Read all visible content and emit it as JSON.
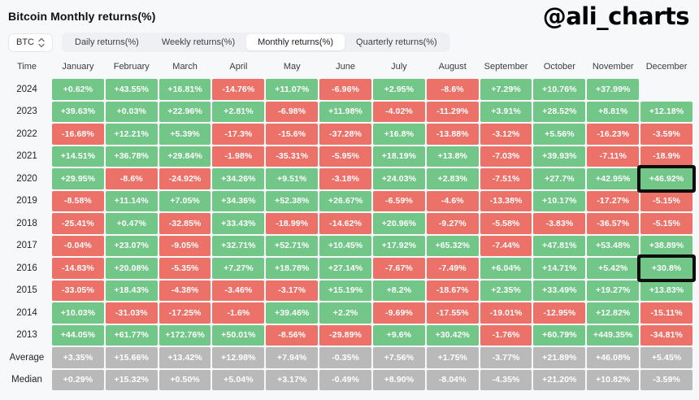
{
  "header": {
    "title": "Bitcoin Monthly returns(%)",
    "handle": "@ali_charts"
  },
  "controls": {
    "asset_selector": {
      "value": "BTC",
      "icon": "updown-chevron-icon"
    },
    "tabs": [
      {
        "label": "Daily returns(%)",
        "active": false
      },
      {
        "label": "Weekly returns(%)",
        "active": false
      },
      {
        "label": "Monthly returns(%)",
        "active": true
      },
      {
        "label": "Quarterly returns(%)",
        "active": false
      }
    ]
  },
  "colors": {
    "positive": "#72c688",
    "negative": "#ec7168",
    "summary": "#b9b9ba",
    "highlight_border": "#0d0d0d",
    "background": "#f7f8f9"
  },
  "table": {
    "time_header": "Time",
    "columns": [
      "January",
      "February",
      "March",
      "April",
      "May",
      "June",
      "July",
      "August",
      "September",
      "October",
      "November",
      "December"
    ],
    "rows": [
      {
        "label": "2024",
        "type": "year",
        "values": [
          "+0.62%",
          "+43.55%",
          "+16.81%",
          "-14.76%",
          "+11.07%",
          "-6.96%",
          "+2.95%",
          "-8.6%",
          "+7.29%",
          "+10.76%",
          "+37.99%",
          null
        ]
      },
      {
        "label": "2023",
        "type": "year",
        "values": [
          "+39.63%",
          "+0.03%",
          "+22.96%",
          "+2.81%",
          "-6.98%",
          "+11.98%",
          "-4.02%",
          "-11.29%",
          "+3.91%",
          "+28.52%",
          "+8.81%",
          "+12.18%"
        ]
      },
      {
        "label": "2022",
        "type": "year",
        "values": [
          "-16.68%",
          "+12.21%",
          "+5.39%",
          "-17.3%",
          "-15.6%",
          "-37.28%",
          "+16.8%",
          "-13.88%",
          "-3.12%",
          "+5.56%",
          "-16.23%",
          "-3.59%"
        ]
      },
      {
        "label": "2021",
        "type": "year",
        "values": [
          "+14.51%",
          "+36.78%",
          "+29.84%",
          "-1.98%",
          "-35.31%",
          "-5.95%",
          "+18.19%",
          "+13.8%",
          "-7.03%",
          "+39.93%",
          "-7.11%",
          "-18.9%"
        ]
      },
      {
        "label": "2020",
        "type": "year",
        "values": [
          "+29.95%",
          "-8.6%",
          "-24.92%",
          "+34.26%",
          "+9.51%",
          "-3.18%",
          "+24.03%",
          "+2.83%",
          "-7.51%",
          "+27.7%",
          "+42.95%",
          "+46.92%"
        ]
      },
      {
        "label": "2019",
        "type": "year",
        "values": [
          "-8.58%",
          "+11.14%",
          "+7.05%",
          "+34.36%",
          "+52.38%",
          "+26.67%",
          "-6.59%",
          "-4.6%",
          "-13.38%",
          "+10.17%",
          "-17.27%",
          "-5.15%"
        ]
      },
      {
        "label": "2018",
        "type": "year",
        "values": [
          "-25.41%",
          "+0.47%",
          "-32.85%",
          "+33.43%",
          "-18.99%",
          "-14.62%",
          "+20.96%",
          "-9.27%",
          "-5.58%",
          "-3.83%",
          "-36.57%",
          "-5.15%"
        ]
      },
      {
        "label": "2017",
        "type": "year",
        "values": [
          "-0.04%",
          "+23.07%",
          "-9.05%",
          "+32.71%",
          "+52.71%",
          "+10.45%",
          "+17.92%",
          "+65.32%",
          "-7.44%",
          "+47.81%",
          "+53.48%",
          "+38.89%"
        ]
      },
      {
        "label": "2016",
        "type": "year",
        "values": [
          "-14.83%",
          "+20.08%",
          "-5.35%",
          "+7.27%",
          "+18.78%",
          "+27.14%",
          "-7.67%",
          "-7.49%",
          "+6.04%",
          "+14.71%",
          "+5.42%",
          "+30.8%"
        ]
      },
      {
        "label": "2015",
        "type": "year",
        "values": [
          "-33.05%",
          "+18.43%",
          "-4.38%",
          "-3.46%",
          "-3.17%",
          "+15.19%",
          "+8.2%",
          "-18.67%",
          "+2.35%",
          "+33.49%",
          "+19.27%",
          "+13.83%"
        ]
      },
      {
        "label": "2014",
        "type": "year",
        "values": [
          "+10.03%",
          "-31.03%",
          "-17.25%",
          "-1.6%",
          "+39.46%",
          "+2.2%",
          "-9.69%",
          "-17.55%",
          "-19.01%",
          "-12.95%",
          "+12.82%",
          "-15.11%"
        ]
      },
      {
        "label": "2013",
        "type": "year",
        "values": [
          "+44.05%",
          "+61.77%",
          "+172.76%",
          "+50.01%",
          "-8.56%",
          "-29.89%",
          "+9.6%",
          "+30.42%",
          "-1.76%",
          "+60.79%",
          "+449.35%",
          "-34.81%"
        ]
      },
      {
        "label": "Average",
        "type": "summary",
        "values": [
          "+3.35%",
          "+15.66%",
          "+13.42%",
          "+12.98%",
          "+7.94%",
          "-0.35%",
          "+7.56%",
          "+1.75%",
          "-3.77%",
          "+21.89%",
          "+46.08%",
          "+5.45%"
        ]
      },
      {
        "label": "Median",
        "type": "summary",
        "values": [
          "+0.29%",
          "+15.32%",
          "+0.50%",
          "+5.04%",
          "+3.17%",
          "-0.49%",
          "+8.90%",
          "-8.04%",
          "-4.35%",
          "+21.20%",
          "+10.82%",
          "-3.59%"
        ]
      }
    ],
    "highlights": [
      {
        "row": "2020",
        "column": "December"
      },
      {
        "row": "2016",
        "column": "December"
      }
    ]
  }
}
